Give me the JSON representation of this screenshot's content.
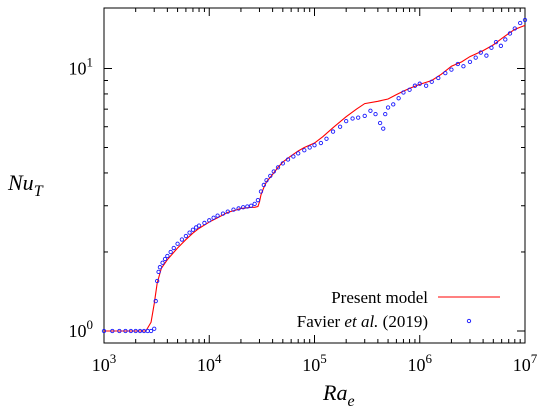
{
  "chart_data": {
    "type": "line",
    "xlabel": {
      "base": "Ra",
      "sub": "e"
    },
    "ylabel": {
      "base": "Nu",
      "sub": "T"
    },
    "x_scale": "log",
    "y_scale": "log",
    "xlim": [
      1000,
      10000000
    ],
    "ylim": [
      0.9,
      17
    ],
    "grid": false,
    "legend_position": "bottom-right",
    "x_ticks": [
      {
        "value": 1000,
        "base": "10",
        "exp": "3"
      },
      {
        "value": 10000,
        "base": "10",
        "exp": "4"
      },
      {
        "value": 100000,
        "base": "10",
        "exp": "5"
      },
      {
        "value": 1000000,
        "base": "10",
        "exp": "6"
      },
      {
        "value": 10000000,
        "base": "10",
        "exp": "7"
      }
    ],
    "y_ticks": [
      {
        "value": 1,
        "base": "10",
        "exp": "0"
      },
      {
        "value": 10,
        "base": "10",
        "exp": "1"
      }
    ],
    "legend": {
      "line_label": "Present model",
      "points_prefix": "Favier ",
      "points_italic": "et al.",
      "points_suffix": " (2019)"
    },
    "series": [
      {
        "name": "Present model",
        "style": "line",
        "color": "#ff0000",
        "x": [
          1000,
          1500,
          2000,
          2500,
          2800,
          3000,
          3200,
          3500,
          4000,
          5000,
          6000,
          7000,
          8000,
          10000,
          12000,
          15000,
          18000,
          20000,
          22000,
          25000,
          27000,
          29000,
          30000,
          31000,
          33000,
          35000,
          40000,
          45000,
          50000,
          60000,
          70000,
          80000,
          100000,
          120000,
          150000,
          200000,
          250000,
          300000,
          400000,
          500000,
          600000,
          700000,
          800000,
          1000000,
          1300000,
          1600000,
          2000000,
          2500000,
          3000000,
          4000000,
          5000000,
          6000000,
          7000000,
          8000000,
          10000000
        ],
        "y": [
          1.0,
          1.0,
          1.0,
          1.0,
          1.08,
          1.27,
          1.52,
          1.73,
          1.87,
          2.07,
          2.23,
          2.36,
          2.46,
          2.6,
          2.7,
          2.83,
          2.89,
          2.93,
          2.94,
          2.96,
          2.96,
          2.98,
          3.1,
          3.3,
          3.52,
          3.7,
          3.95,
          4.2,
          4.4,
          4.65,
          4.85,
          5.0,
          5.2,
          5.5,
          5.95,
          6.55,
          7.0,
          7.35,
          7.5,
          7.65,
          7.95,
          8.2,
          8.4,
          8.7,
          9.0,
          9.5,
          10.2,
          10.6,
          11.1,
          11.7,
          12.3,
          13.0,
          13.6,
          14.1,
          14.6
        ]
      },
      {
        "name": "Favier et al. (2019)",
        "style": "points",
        "color": "#1a1aff",
        "x": [
          1000,
          1200,
          1400,
          1600,
          1800,
          2000,
          2200,
          2400,
          2600,
          2800,
          3000,
          3100,
          3200,
          3300,
          3400,
          3600,
          3800,
          4000,
          4300,
          4600,
          5000,
          5500,
          6000,
          6500,
          7000,
          7500,
          8000,
          9000,
          10000,
          11000,
          12000,
          13500,
          15000,
          17000,
          19000,
          21000,
          23000,
          25000,
          27000,
          29000,
          31000,
          33000,
          35000,
          38000,
          41000,
          45000,
          50000,
          56000,
          63000,
          70000,
          80000,
          90000,
          100000,
          115000,
          130000,
          150000,
          175000,
          200000,
          230000,
          260000,
          300000,
          340000,
          380000,
          420000,
          450000,
          470000,
          500000,
          560000,
          630000,
          700000,
          800000,
          900000,
          1000000,
          1150000,
          1300000,
          1500000,
          1750000,
          2000000,
          2300000,
          2600000,
          3000000,
          3400000,
          3800000,
          4300000,
          4800000,
          5300000,
          5900000,
          6500000,
          7200000,
          8000000,
          9000000,
          10000000
        ],
        "y": [
          1.0,
          1.0,
          1.0,
          1.0,
          1.0,
          1.0,
          1.0,
          1.0,
          1.0,
          1.0,
          1.02,
          1.3,
          1.55,
          1.68,
          1.75,
          1.82,
          1.88,
          1.93,
          2.0,
          2.07,
          2.15,
          2.23,
          2.3,
          2.37,
          2.43,
          2.48,
          2.52,
          2.58,
          2.64,
          2.7,
          2.75,
          2.8,
          2.85,
          2.9,
          2.93,
          2.96,
          2.98,
          3.0,
          3.05,
          3.15,
          3.4,
          3.6,
          3.75,
          3.9,
          4.05,
          4.2,
          4.35,
          4.5,
          4.62,
          4.75,
          4.88,
          5.0,
          5.1,
          5.2,
          5.4,
          5.75,
          6.0,
          6.3,
          6.45,
          6.5,
          6.6,
          6.9,
          6.7,
          6.2,
          5.9,
          6.7,
          7.1,
          7.3,
          7.7,
          8.1,
          8.3,
          8.6,
          8.75,
          8.6,
          8.9,
          9.2,
          9.6,
          9.9,
          10.4,
          10.2,
          10.6,
          11.0,
          11.5,
          11.2,
          12.0,
          12.6,
          12.2,
          12.9,
          13.6,
          14.2,
          14.9,
          15.3
        ]
      }
    ]
  }
}
